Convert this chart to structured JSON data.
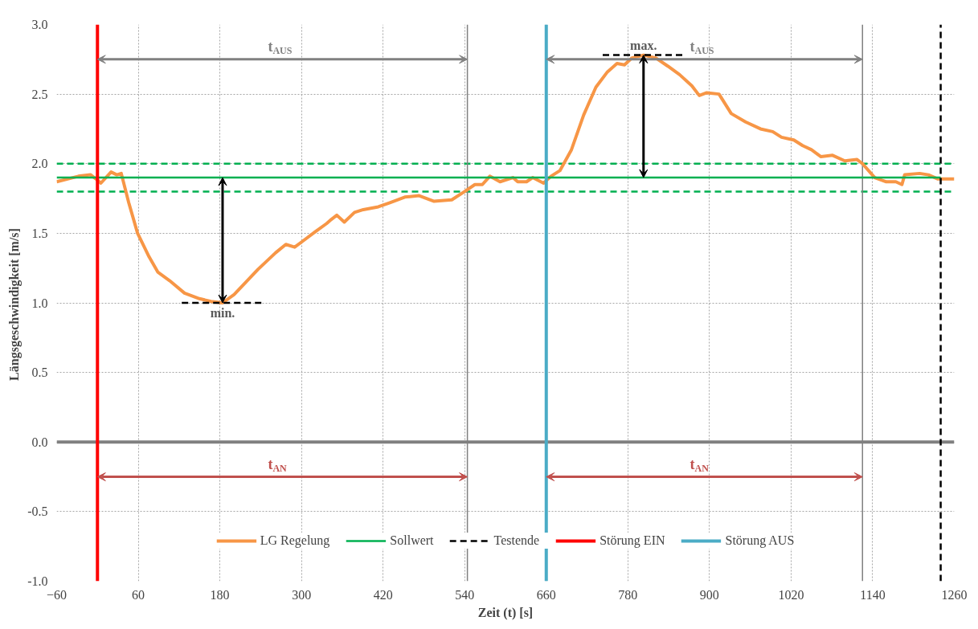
{
  "chart_data": {
    "type": "line",
    "xlabel": "Zeit (t) [s]",
    "ylabel": "Längsgeschwindigkeit  [m/s]",
    "xlim": [
      -60,
      1260
    ],
    "xticks": [
      -60,
      60,
      180,
      300,
      420,
      540,
      660,
      780,
      900,
      1020,
      1140,
      1260
    ],
    "ylim": [
      -1,
      3
    ],
    "yticks": [
      {
        "value": -1,
        "label": "-1.0"
      },
      {
        "value": -0.5,
        "label": "-0.5"
      },
      {
        "value": 0,
        "label": "0.0"
      },
      {
        "value": 0.5,
        "label": "0.5"
      },
      {
        "value": 1,
        "label": "1.0"
      },
      {
        "value": 1.5,
        "label": "1.5"
      },
      {
        "value": 2,
        "label": "2.0"
      },
      {
        "value": 2.5,
        "label": "2.5"
      },
      {
        "value": 3,
        "label": "3.0"
      }
    ],
    "grid": true,
    "legend": "bottom",
    "line_style": "solid",
    "marker": "none",
    "series": [
      {
        "name": "LG Regelung",
        "color": "#f79646",
        "x": [
          -60,
          -28,
          -10,
          -2,
          5,
          20,
          28.5,
          35,
          46,
          59,
          76,
          89,
          106,
          128,
          150,
          167,
          184,
          201,
          236,
          262,
          277,
          290,
          301,
          320,
          337,
          344,
          352,
          363,
          378,
          391,
          413,
          430,
          452,
          473,
          495,
          521,
          540,
          555,
          566,
          577,
          592,
          611,
          618,
          631,
          640,
          656,
          667,
          680,
          697,
          715,
          733,
          750,
          764,
          775,
          786,
          803,
          821,
          839,
          856,
          874,
          885,
          896,
          914,
          932,
          953,
          975,
          993,
          1006,
          1024,
          1037,
          1050,
          1064,
          1081,
          1099,
          1117,
          1125,
          1143,
          1160,
          1174,
          1183,
          1187,
          1209,
          1222,
          1236,
          1260
        ],
        "values": [
          1.87,
          1.91,
          1.92,
          1.89,
          1.86,
          1.94,
          1.92,
          1.93,
          1.72,
          1.5,
          1.33,
          1.22,
          1.16,
          1.07,
          1.03,
          1.01,
          1.0,
          1.06,
          1.24,
          1.36,
          1.42,
          1.4,
          1.44,
          1.51,
          1.57,
          1.6,
          1.63,
          1.58,
          1.65,
          1.67,
          1.69,
          1.72,
          1.76,
          1.77,
          1.73,
          1.74,
          1.8,
          1.85,
          1.85,
          1.91,
          1.87,
          1.9,
          1.87,
          1.87,
          1.9,
          1.86,
          1.91,
          1.95,
          2.1,
          2.35,
          2.55,
          2.66,
          2.72,
          2.71,
          2.76,
          2.78,
          2.76,
          2.7,
          2.64,
          2.56,
          2.49,
          2.51,
          2.5,
          2.36,
          2.3,
          2.25,
          2.23,
          2.19,
          2.17,
          2.13,
          2.1,
          2.05,
          2.06,
          2.02,
          2.03,
          2.0,
          1.9,
          1.87,
          1.87,
          1.85,
          1.92,
          1.93,
          1.92,
          1.89,
          1.89
        ]
      },
      {
        "name": "Sollwert",
        "color": "#00b050",
        "x": [
          -60,
          1240
        ],
        "values": [
          1.9,
          1.9
        ]
      },
      {
        "color": "#000000",
        "line_style": "dashed",
        "x": [
          124,
          244
        ],
        "values": [
          1.0,
          1.0
        ]
      },
      {
        "color": "#000000",
        "line_style": "dashed",
        "x": [
          743,
          863
        ],
        "values": [
          2.78,
          2.78
        ]
      },
      {
        "name": "Testende",
        "color": "#000000",
        "line_style": "dashed",
        "x": [
          1240,
          1240
        ],
        "values": [
          -1,
          3
        ]
      },
      {
        "name": "Störung EIN",
        "color": "#ff0000",
        "x": [
          0,
          0
        ],
        "values": [
          -1,
          3
        ]
      },
      {
        "name": "Störung AUS",
        "color": "#4bacc6",
        "x": [
          660,
          660
        ],
        "values": [
          -1,
          3
        ]
      }
    ],
    "ref_lines": [
      {
        "axis": "y",
        "value": 0,
        "color": "#808080"
      },
      {
        "axis": "y",
        "value": 2.0,
        "color": "#00b050",
        "line_style": "dashed"
      },
      {
        "axis": "y",
        "value": 1.8,
        "color": "#00b050",
        "line_style": "dashed"
      },
      {
        "axis": "x",
        "value": 544,
        "color": "#808080"
      },
      {
        "axis": "x",
        "value": 1125,
        "color": "#808080"
      }
    ],
    "annotations": [
      "t$_{AUS}$",
      "t$_{AUS}$",
      "t$_{AN}$",
      "t$_{AN}$",
      {
        "text": "min.",
        "x": 184,
        "y": 1.0
      },
      {
        "text": "max.",
        "x": 803,
        "y": 2.78
      }
    ]
  }
}
